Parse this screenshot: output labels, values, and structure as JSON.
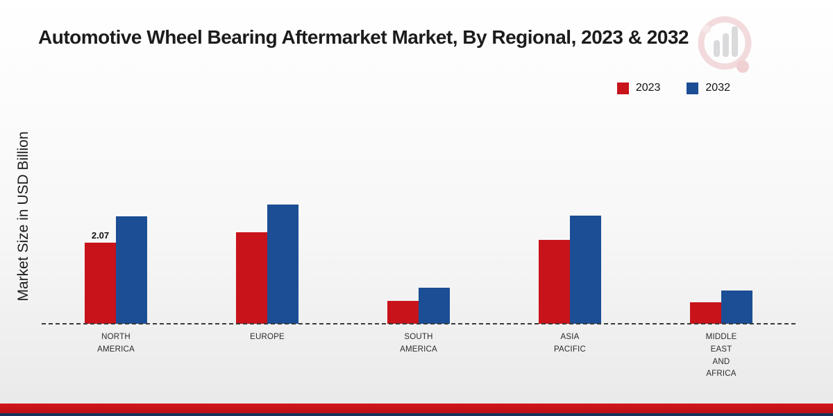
{
  "title": "Automotive Wheel Bearing Aftermarket Market, By Regional, 2023 & 2032",
  "ylabel": "Market Size in USD Billion",
  "legend": {
    "items": [
      {
        "label": "2023",
        "color": "#c8131a"
      },
      {
        "label": "2032",
        "color": "#1b4e94"
      }
    ]
  },
  "colors": {
    "series_2023": "#c8131a",
    "series_2032": "#1b4e94",
    "bottom_strip": "#c4161c"
  },
  "icons": {
    "brand_logo": "bar-chart-logo-icon"
  },
  "chart_data": {
    "type": "bar",
    "title": "Automotive Wheel Bearing Aftermarket Market, By Regional, 2023 & 2032",
    "xlabel": "",
    "ylabel": "Market Size in USD Billion",
    "categories": [
      "NORTH AMERICA",
      "EUROPE",
      "SOUTH AMERICA",
      "ASIA PACIFIC",
      "MIDDLE EAST AND AFRICA"
    ],
    "categories_display": [
      "NORTH\nAMERICA",
      "EUROPE",
      "SOUTH\nAMERICA",
      "ASIA\nPACIFIC",
      "MIDDLE\nEAST\nAND\nAFRICA"
    ],
    "series": [
      {
        "name": "2023",
        "color": "#c8131a",
        "values": [
          2.07,
          2.33,
          0.58,
          2.15,
          0.55
        ]
      },
      {
        "name": "2032",
        "color": "#1b4e94",
        "values": [
          2.75,
          3.05,
          0.92,
          2.76,
          0.85
        ]
      }
    ],
    "annotations": [
      {
        "series": "2023",
        "category": "NORTH AMERICA",
        "text": "2.07"
      }
    ],
    "ylim": [
      0,
      3.2
    ],
    "grid": false,
    "axis_style": "dashed-baseline-only",
    "legend_position": "top-right"
  }
}
